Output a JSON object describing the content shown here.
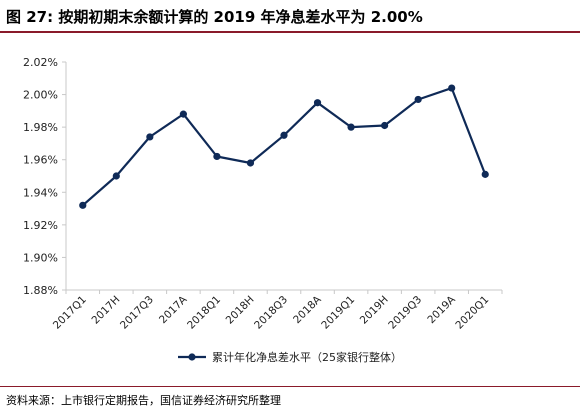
{
  "title": "图 27:  按期初期末余额计算的 2019 年净息差水平为 2.00%",
  "source": "资料来源：上市银行定期报告，国信证券经济研究所整理",
  "colors": {
    "series": "#0f2a57",
    "accent": "#8a1a2a",
    "axis": "#c8c8c8"
  },
  "chart_data": {
    "type": "line",
    "title": "",
    "xlabel": "",
    "ylabel": "",
    "categories": [
      "2017Q1",
      "2017H",
      "2017Q3",
      "2017A",
      "2018Q1",
      "2018H",
      "2018Q3",
      "2018A",
      "2019Q1",
      "2019H",
      "2019Q3",
      "2019A",
      "2020Q1"
    ],
    "y_ticks": [
      "1.88%",
      "1.90%",
      "1.92%",
      "1.94%",
      "1.96%",
      "1.98%",
      "2.00%",
      "2.02%"
    ],
    "ylim": [
      1.88,
      2.02
    ],
    "grid": false,
    "legend_position": "bottom",
    "series": [
      {
        "name": "累计年化净息差水平（25家银行整体）",
        "values": [
          1.932,
          1.95,
          1.974,
          1.988,
          1.962,
          1.958,
          1.975,
          1.995,
          1.98,
          1.981,
          1.997,
          2.004,
          1.951
        ]
      }
    ]
  }
}
